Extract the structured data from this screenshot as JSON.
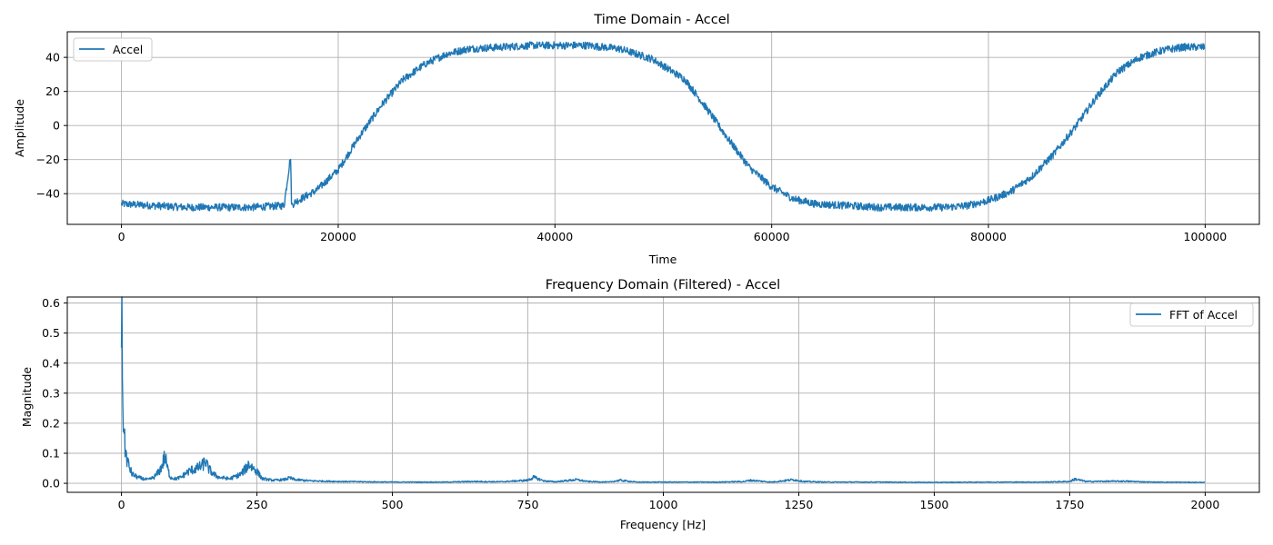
{
  "chart_data": [
    {
      "type": "line",
      "title": "Time Domain - Accel",
      "xlabel": "Time",
      "ylabel": "Amplitude",
      "xlim": [
        -5000,
        105000
      ],
      "ylim": [
        -58,
        55
      ],
      "xticks": [
        0,
        20000,
        40000,
        60000,
        80000,
        100000
      ],
      "xtick_labels": [
        "0",
        "20000",
        "40000",
        "60000",
        "80000",
        "100000"
      ],
      "yticks": [
        -40,
        -20,
        0,
        20,
        40
      ],
      "ytick_labels": [
        "−40",
        "−20",
        "0",
        "20",
        "40"
      ],
      "grid": true,
      "legend": "upper left",
      "color": "#1f77b4",
      "series": [
        {
          "name": "Accel",
          "x": [
            0,
            3000,
            6000,
            9000,
            12000,
            15000,
            15600,
            15700,
            16000,
            18000,
            20000,
            22000,
            24000,
            26000,
            28000,
            30000,
            32000,
            35000,
            38000,
            40000,
            43000,
            46000,
            49000,
            52000,
            54000,
            56000,
            58000,
            60000,
            62000,
            64000,
            67000,
            70000,
            73000,
            76000,
            78000,
            80000,
            82000,
            84000,
            86000,
            88000,
            90000,
            92000,
            94000,
            96000,
            98000,
            100000
          ],
          "y": [
            -46,
            -47,
            -48,
            -48,
            -48,
            -47,
            -18,
            -47,
            -45,
            -38,
            -26,
            -6,
            12,
            27,
            36,
            42,
            45,
            46,
            47,
            47,
            47,
            45,
            39,
            27,
            10,
            -8,
            -25,
            -36,
            -43,
            -46,
            -47,
            -48,
            -48,
            -48,
            -47,
            -44,
            -39,
            -30,
            -17,
            -1,
            17,
            32,
            40,
            44,
            46,
            46
          ]
        }
      ]
    },
    {
      "type": "line",
      "title": "Frequency Domain (Filtered) - Accel",
      "xlabel": "Frequency [Hz]",
      "ylabel": "Magnitude",
      "xlim": [
        -100,
        2100
      ],
      "ylim": [
        -0.03,
        0.62
      ],
      "xticks": [
        0,
        250,
        500,
        750,
        1000,
        1250,
        1500,
        1750,
        2000
      ],
      "xtick_labels": [
        "0",
        "250",
        "500",
        "750",
        "1000",
        "1250",
        "1500",
        "1750",
        "2000"
      ],
      "yticks": [
        0.0,
        0.1,
        0.2,
        0.3,
        0.4,
        0.5,
        0.6
      ],
      "ytick_labels": [
        "0.0",
        "0.1",
        "0.2",
        "0.3",
        "0.4",
        "0.5",
        "0.6"
      ],
      "grid": true,
      "legend": "upper right",
      "color": "#1f77b4",
      "series": [
        {
          "name": "FFT of Accel",
          "x": [
            0,
            1,
            2,
            4,
            6,
            10,
            15,
            20,
            30,
            40,
            50,
            60,
            70,
            75,
            80,
            85,
            90,
            100,
            110,
            120,
            130,
            140,
            150,
            155,
            160,
            170,
            180,
            200,
            220,
            230,
            235,
            240,
            250,
            260,
            280,
            300,
            310,
            320,
            350,
            400,
            500,
            600,
            650,
            700,
            750,
            760,
            780,
            800,
            840,
            860,
            900,
            920,
            950,
            1000,
            1050,
            1100,
            1150,
            1160,
            1200,
            1240,
            1260,
            1300,
            1400,
            1500,
            1600,
            1700,
            1750,
            1760,
            1780,
            1850,
            1900,
            2000
          ],
          "y": [
            0.59,
            0.45,
            0.3,
            0.2,
            0.13,
            0.08,
            0.05,
            0.03,
            0.02,
            0.015,
            0.012,
            0.02,
            0.04,
            0.06,
            0.09,
            0.05,
            0.02,
            0.015,
            0.02,
            0.035,
            0.045,
            0.05,
            0.06,
            0.075,
            0.05,
            0.03,
            0.02,
            0.015,
            0.03,
            0.05,
            0.065,
            0.055,
            0.04,
            0.015,
            0.01,
            0.012,
            0.018,
            0.012,
            0.008,
            0.006,
            0.004,
            0.004,
            0.006,
            0.005,
            0.01,
            0.02,
            0.008,
            0.005,
            0.012,
            0.006,
            0.004,
            0.01,
            0.004,
            0.004,
            0.004,
            0.004,
            0.006,
            0.01,
            0.004,
            0.012,
            0.006,
            0.004,
            0.004,
            0.003,
            0.004,
            0.004,
            0.006,
            0.014,
            0.006,
            0.007,
            0.004,
            0.003
          ]
        }
      ]
    }
  ]
}
